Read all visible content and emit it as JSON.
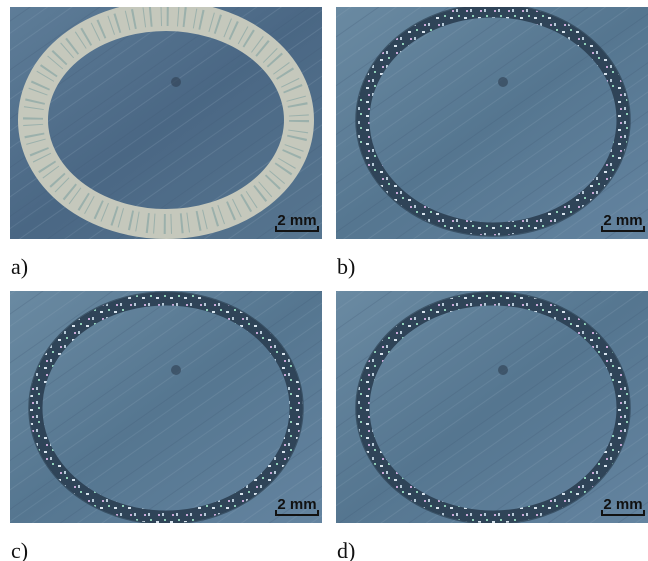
{
  "panels": [
    {
      "label": "a)",
      "scale": "2 mm"
    },
    {
      "label": "b)",
      "scale": "2 mm"
    },
    {
      "label": "c)",
      "scale": "2 mm"
    },
    {
      "label": "d)",
      "scale": "2 mm"
    }
  ]
}
